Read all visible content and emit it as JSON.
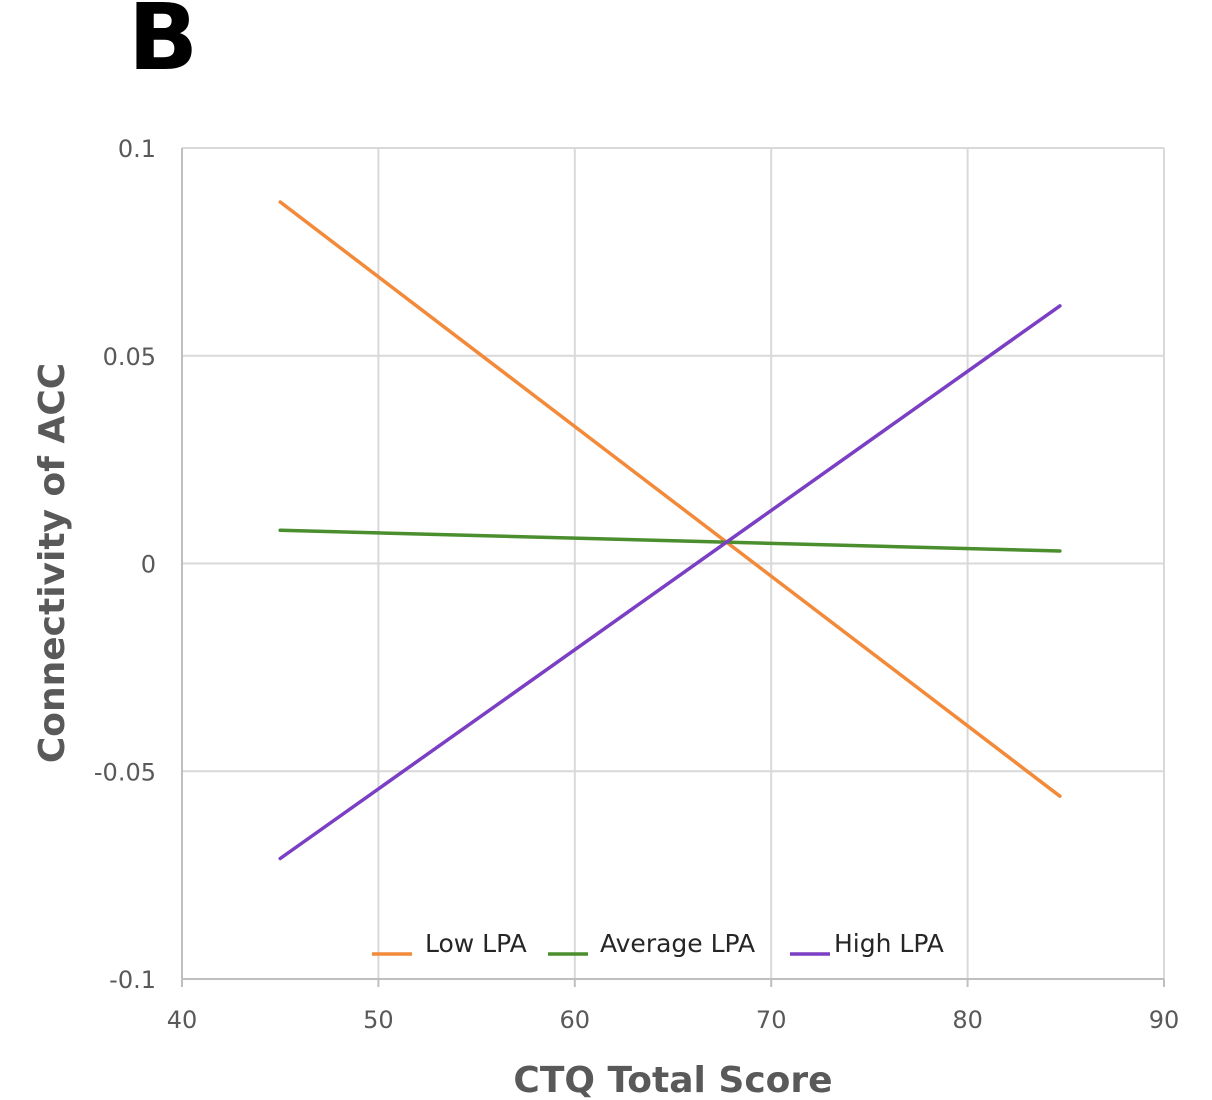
{
  "panel_label": "B",
  "chart_data": {
    "type": "line",
    "title": "",
    "xlabel": "CTQ Total Score",
    "ylabel": "Connectivity of ACC",
    "xlim": [
      40,
      90
    ],
    "ylim": [
      -0.1,
      0.1
    ],
    "x_ticks": [
      40,
      50,
      60,
      70,
      80,
      90
    ],
    "y_ticks": [
      {
        "value": 0.1,
        "label": "0.1"
      },
      {
        "value": 0.05,
        "label": "0.05"
      },
      {
        "value": 0,
        "label": "0"
      },
      {
        "value": -0.05,
        "label": "-0.05"
      },
      {
        "value": -0.1,
        "label": "-0.1"
      }
    ],
    "grid": true,
    "legend_position": "bottom-center",
    "series": [
      {
        "name": "Low LPA",
        "color": "#F28A3A",
        "x": [
          45,
          84.7
        ],
        "y": [
          0.087,
          -0.056
        ]
      },
      {
        "name": "Average LPA",
        "color": "#4A8E2E",
        "x": [
          45,
          84.7
        ],
        "y": [
          0.008,
          0.003
        ]
      },
      {
        "name": "High LPA",
        "color": "#7B3FC4",
        "x": [
          45,
          84.7
        ],
        "y": [
          -0.071,
          0.062
        ]
      }
    ]
  }
}
